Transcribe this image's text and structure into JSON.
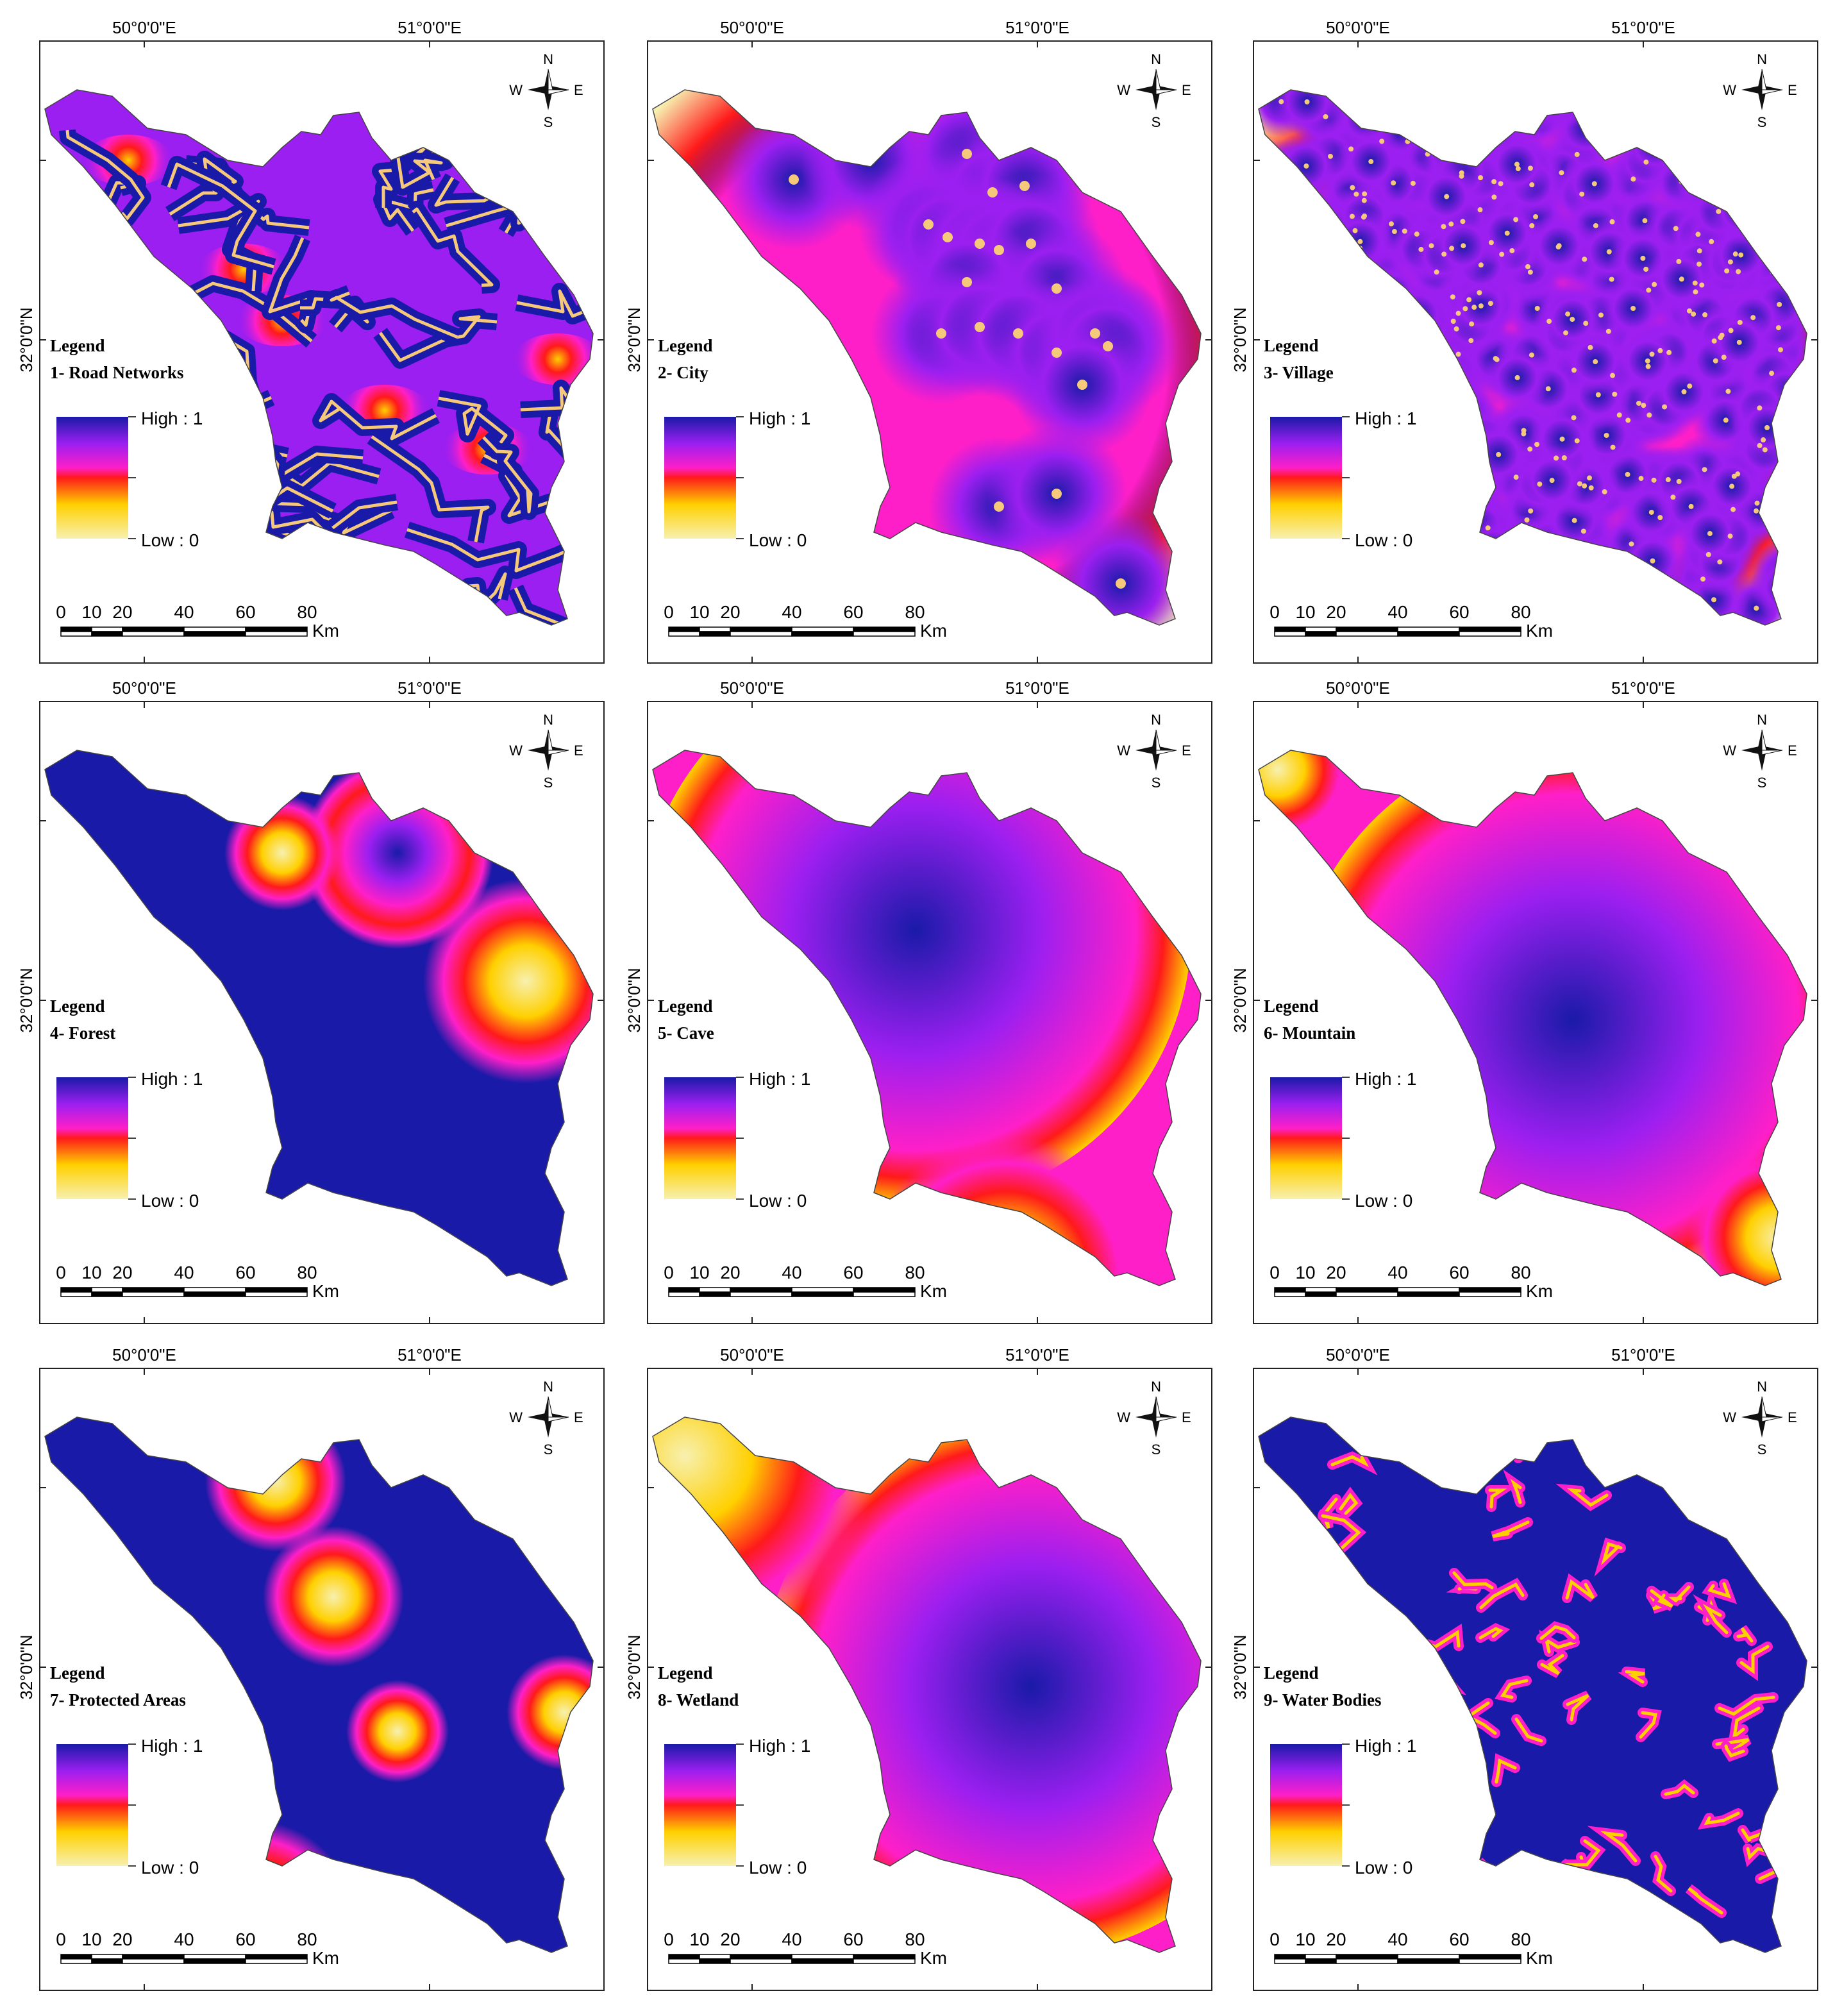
{
  "ramp": {
    "high_color": "#1a1aa8",
    "mid_high_color": "#9b1ff0",
    "mid_color": "#ff1fc8",
    "mid_low_color": "#ff1a1a",
    "low_mid_color": "#ffd000",
    "low_color": "#f7f0b0",
    "feature_color": "#f5c87a"
  },
  "common": {
    "legend_heading": "Legend",
    "high_label": "High : 1",
    "low_label": "Low : 0",
    "lon_label_1": "50°0'0\"E",
    "lon_label_2": "51°0'0\"E",
    "lat_label": "32°0'0\"N",
    "scale_ticks": [
      "0",
      "10",
      "20",
      "40",
      "60",
      "80"
    ],
    "scale_unit": "Km",
    "compass": {
      "n": "N",
      "s": "S",
      "e": "E",
      "w": "W"
    }
  },
  "panels": [
    {
      "id": "road-networks",
      "layer_title": "1- Road Networks",
      "pattern": "lines"
    },
    {
      "id": "city",
      "layer_title": "2- City",
      "pattern": "points-few"
    },
    {
      "id": "village",
      "layer_title": "3- Village",
      "pattern": "points-many"
    },
    {
      "id": "forest",
      "layer_title": "4- Forest",
      "pattern": "forest"
    },
    {
      "id": "cave",
      "layer_title": "5- Cave",
      "pattern": "cave"
    },
    {
      "id": "mountain",
      "layer_title": "6- Mountain",
      "pattern": "mountain"
    },
    {
      "id": "protected-areas",
      "layer_title": "7- Protected Areas",
      "pattern": "protected"
    },
    {
      "id": "wetland",
      "layer_title": "8- Wetland",
      "pattern": "wetland"
    },
    {
      "id": "water-bodies",
      "layer_title": "9- Water Bodies",
      "pattern": "water"
    }
  ]
}
